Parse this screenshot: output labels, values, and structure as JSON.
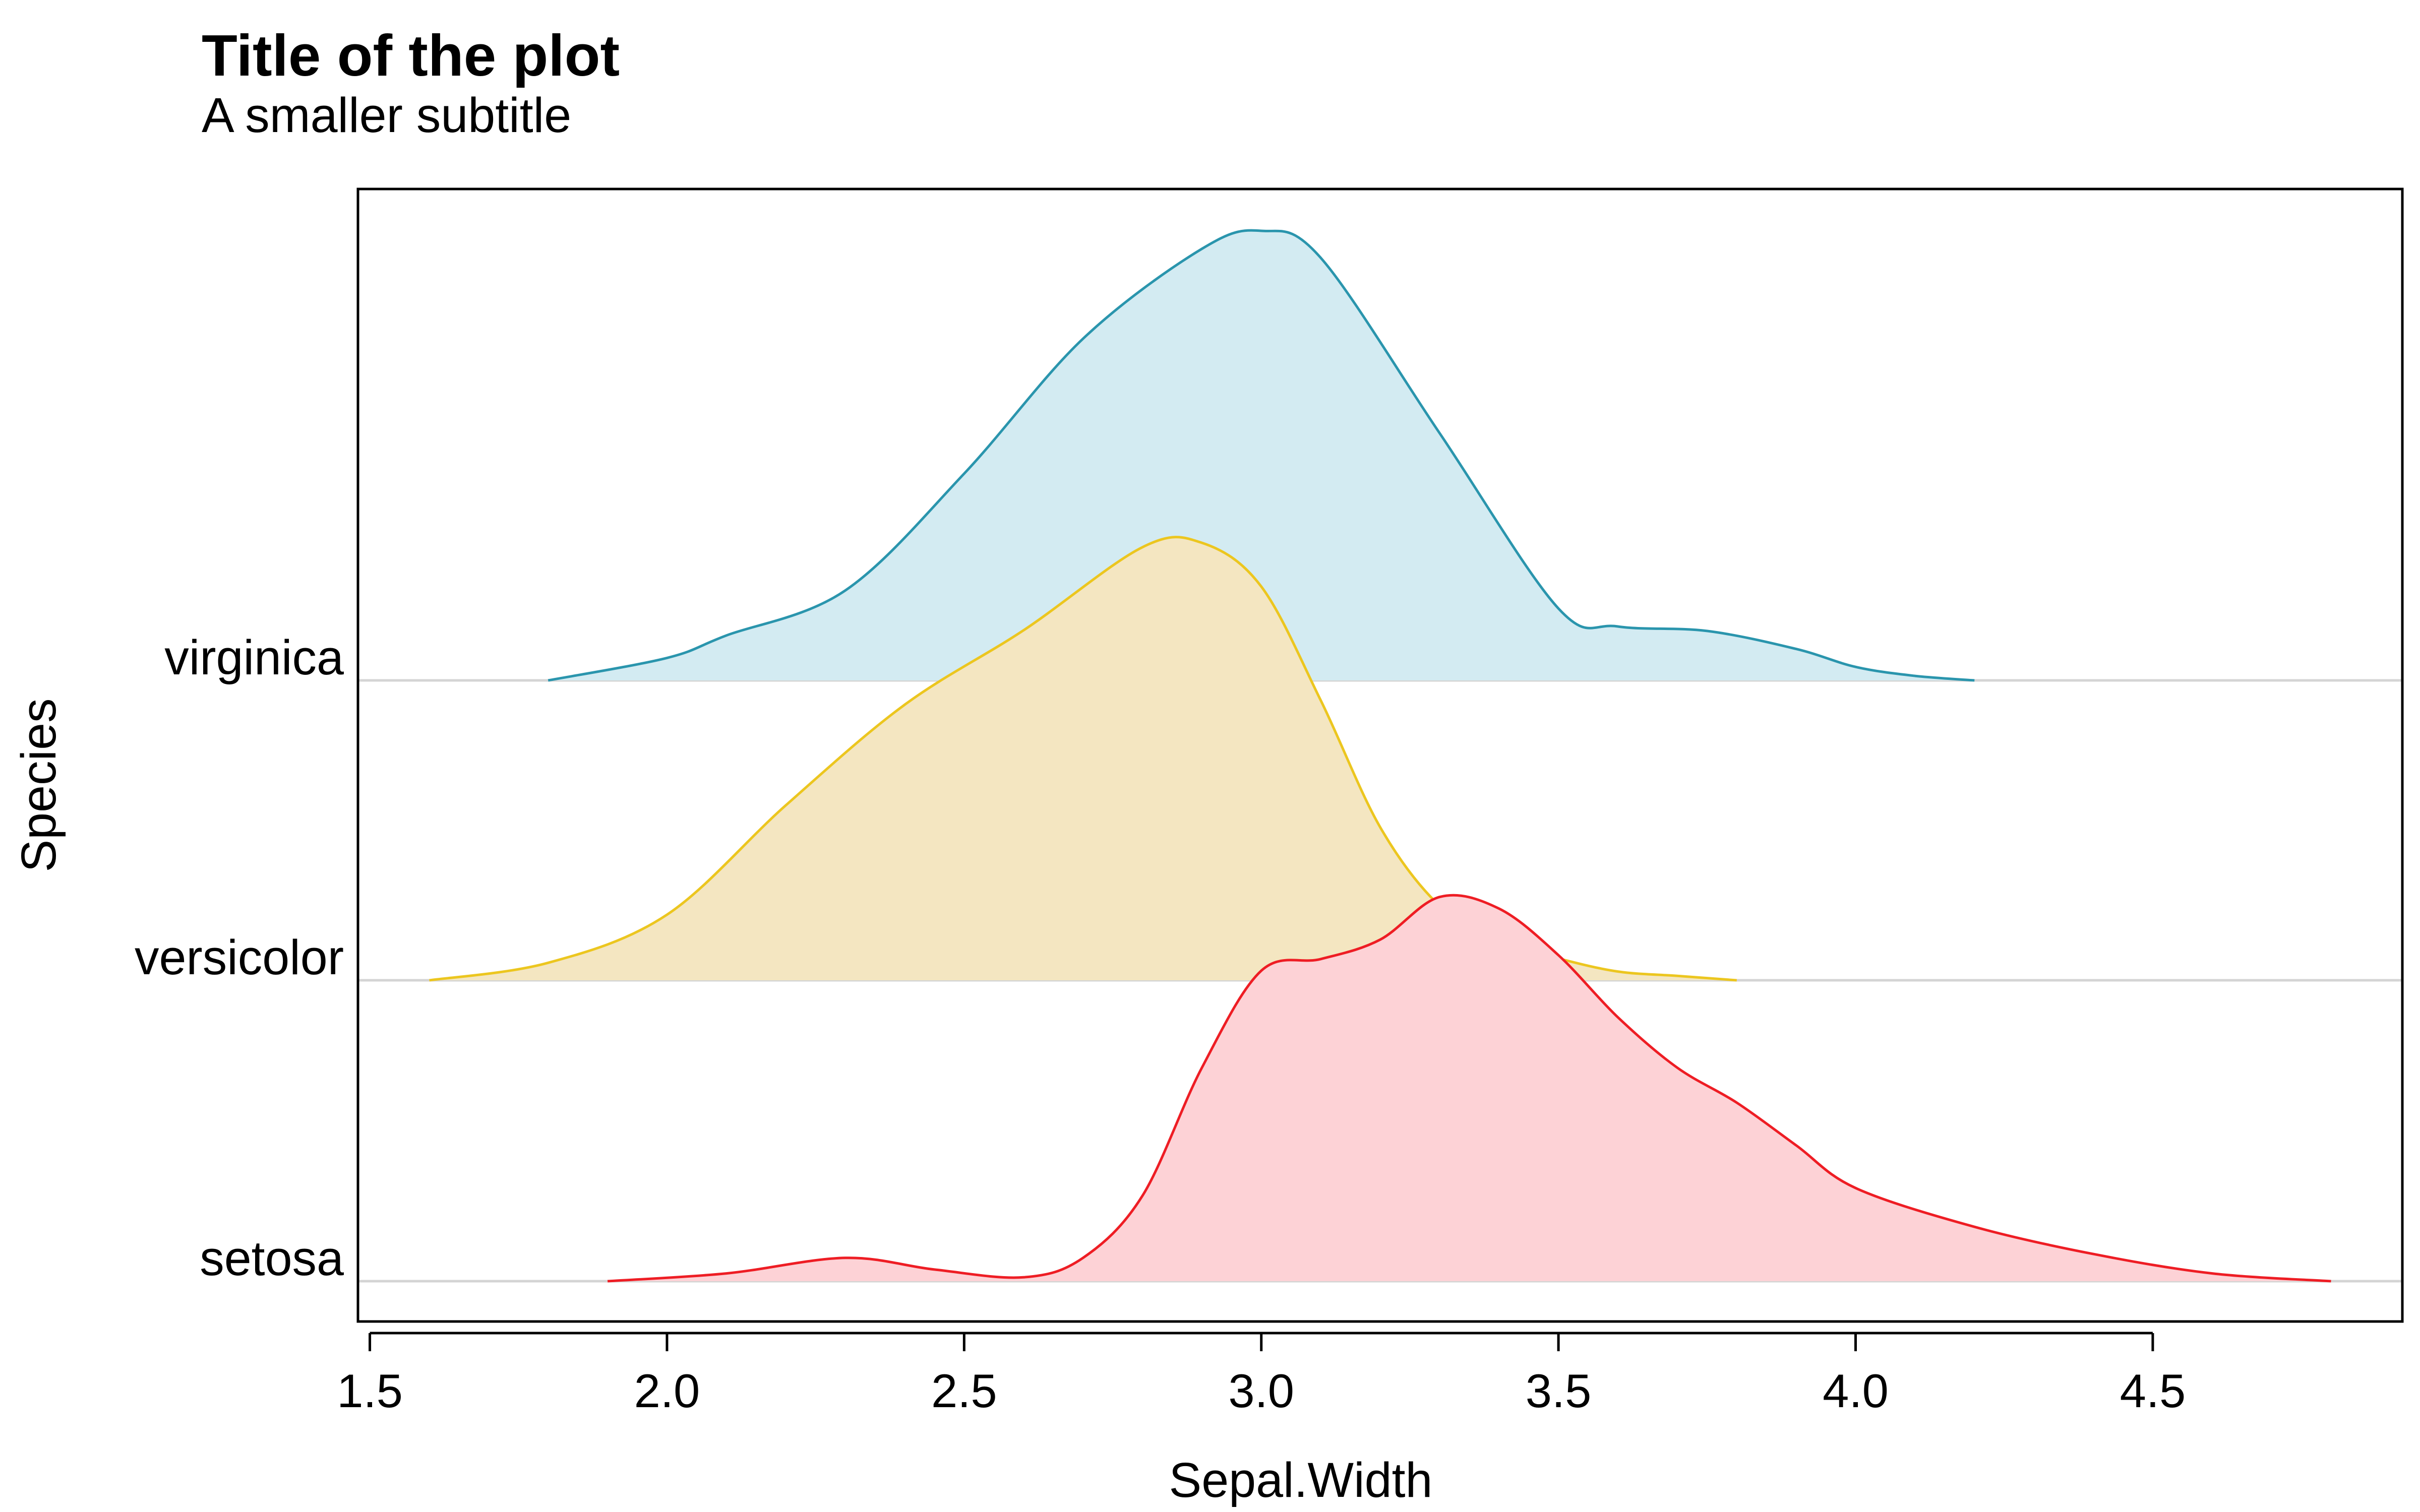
{
  "chart_data": {
    "type": "area",
    "title": "Title of the plot",
    "subtitle": "A smaller subtitle",
    "xlabel": "Sepal.Width",
    "ylabel": "Species",
    "xlim": [
      1.48,
      4.92
    ],
    "xticks": [
      "1.5",
      "2.0",
      "2.5",
      "3.0",
      "3.5",
      "4.0",
      "4.5"
    ],
    "categories": [
      "virginica",
      "versicolor",
      "setosa"
    ],
    "series": [
      {
        "name": "virginica",
        "stroke": "#2a95ad",
        "fill": "#d3ebf2",
        "x": [
          1.8,
          2.0,
          2.1,
          2.3,
          2.5,
          2.7,
          2.9,
          3.0,
          3.1,
          3.3,
          3.5,
          3.6,
          3.75,
          3.9,
          4.0,
          4.1,
          4.2
        ],
        "y": [
          0.0,
          0.05,
          0.1,
          0.2,
          0.46,
          0.76,
          0.96,
          1.0,
          0.94,
          0.55,
          0.16,
          0.12,
          0.11,
          0.07,
          0.03,
          0.01,
          0.0
        ]
      },
      {
        "name": "versicolor",
        "stroke": "#ecc61f",
        "fill": "#f4e6c1",
        "x": [
          1.6,
          1.8,
          2.0,
          2.2,
          2.4,
          2.6,
          2.8,
          2.9,
          3.0,
          3.1,
          3.2,
          3.3,
          3.4,
          3.5,
          3.6,
          3.7,
          3.8
        ],
        "y": [
          0.0,
          0.04,
          0.15,
          0.4,
          0.63,
          0.8,
          0.99,
          1.0,
          0.9,
          0.64,
          0.35,
          0.17,
          0.09,
          0.05,
          0.02,
          0.01,
          0.0
        ]
      },
      {
        "name": "setosa",
        "stroke": "#ee1d24",
        "fill": "#fdd2d6",
        "x": [
          1.9,
          2.1,
          2.3,
          2.45,
          2.6,
          2.7,
          2.8,
          2.9,
          3.0,
          3.1,
          3.2,
          3.3,
          3.4,
          3.5,
          3.6,
          3.7,
          3.8,
          3.9,
          4.0,
          4.2,
          4.4,
          4.6,
          4.8
        ],
        "y": [
          0.0,
          0.02,
          0.06,
          0.03,
          0.01,
          0.06,
          0.22,
          0.55,
          0.8,
          0.83,
          0.88,
          0.99,
          0.96,
          0.84,
          0.68,
          0.55,
          0.46,
          0.35,
          0.24,
          0.14,
          0.07,
          0.02,
          0.0
        ]
      }
    ],
    "grid": false,
    "legend": "none"
  }
}
